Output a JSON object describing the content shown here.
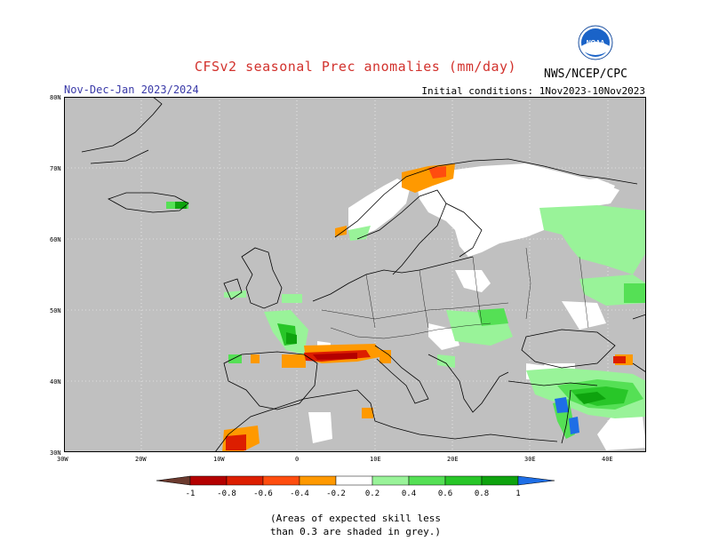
{
  "title": "CFSv2 seasonal Prec anomalies (mm/day)",
  "organization": "NWS/NCEP/CPC",
  "logo_text": "NOAA",
  "period": "Nov-Dec-Jan 2023/2024",
  "initial_conditions": "Initial conditions: 1Nov2023-10Nov2023",
  "map": {
    "lat_labels": [
      "80N",
      "70N",
      "60N",
      "50N",
      "40N",
      "30N"
    ],
    "lon_labels": [
      "30W",
      "20W",
      "10W",
      "0",
      "10E",
      "20E",
      "30E",
      "40E"
    ],
    "colors": {
      "low_skill": "#c0c0c0",
      "ocean_low_skill": "#c0c0c0",
      "land_no_signal": "#ffffff",
      "coast": "#000000"
    }
  },
  "legend": {
    "labels": [
      "-1",
      "-0.8",
      "-0.6",
      "-0.4",
      "-0.2",
      "0.2",
      "0.4",
      "0.6",
      "0.8",
      "1"
    ],
    "colors": [
      "#6b3a2e",
      "#b40000",
      "#dd1e00",
      "#ff4d0f",
      "#ff9900",
      "#ffffff",
      "#99f399",
      "#55e055",
      "#28c628",
      "#0ea30e",
      "#1e6ee6"
    ]
  },
  "note_lines": [
    "(Areas of expected skill less",
    "than 0.3 are shaded in grey.)"
  ]
}
